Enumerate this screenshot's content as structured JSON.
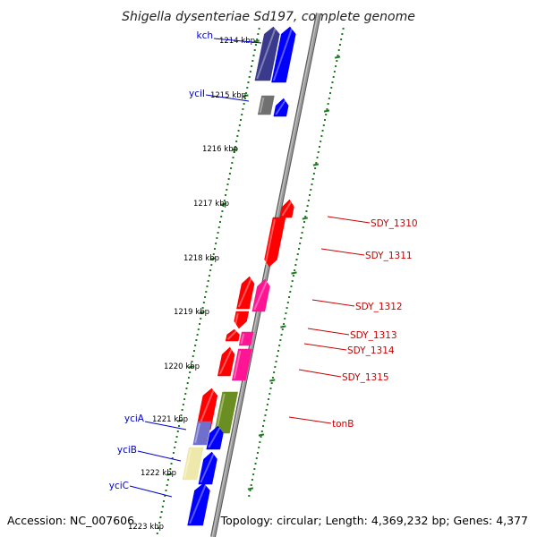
{
  "title": "Shigella dysenteriae Sd197, complete genome",
  "footer": {
    "accession": "Accession: NC_007606",
    "summary": "Topology: circular; Length: 4,369,232 bp; Genes: 4,377"
  },
  "colors": {
    "backbone": "#888888",
    "ticks": "#1f7a1f",
    "label_left": "#0000cc",
    "label_right": "#cc0000",
    "blue": "#0000ff",
    "navy": "#3a3a8c",
    "slate": "#7070cc",
    "gray": "#707070",
    "red": "#ff0000",
    "pink": "#ff1493",
    "olive": "#6b8e23",
    "khaki": "#eee8aa"
  },
  "ticks": [
    {
      "label": "1214 kbp"
    },
    {
      "label": "1215 kbp"
    },
    {
      "label": "1216 kbp"
    },
    {
      "label": "1217 kbp"
    },
    {
      "label": "1218 kbp"
    },
    {
      "label": "1219 kbp"
    },
    {
      "label": "1220 kbp"
    },
    {
      "label": "1221 kbp"
    },
    {
      "label": "1222 kbp"
    },
    {
      "label": "1223 kbp"
    }
  ],
  "genes_left": [
    {
      "label": "kch",
      "color": "#0000cc"
    },
    {
      "label": "yciI",
      "color": "#0000cc"
    },
    {
      "label": "yciA",
      "color": "#0000cc"
    },
    {
      "label": "yciB",
      "color": "#0000cc"
    },
    {
      "label": "yciC",
      "color": "#0000cc"
    }
  ],
  "genes_right": [
    {
      "label": "SDY_1310",
      "color": "#cc0000"
    },
    {
      "label": "SDY_1311",
      "color": "#cc0000"
    },
    {
      "label": "SDY_1312",
      "color": "#cc0000"
    },
    {
      "label": "SDY_1313",
      "color": "#cc0000"
    },
    {
      "label": "SDY_1314",
      "color": "#cc0000"
    },
    {
      "label": "SDY_1315",
      "color": "#cc0000"
    },
    {
      "label": "tonB",
      "color": "#cc0000"
    }
  ]
}
